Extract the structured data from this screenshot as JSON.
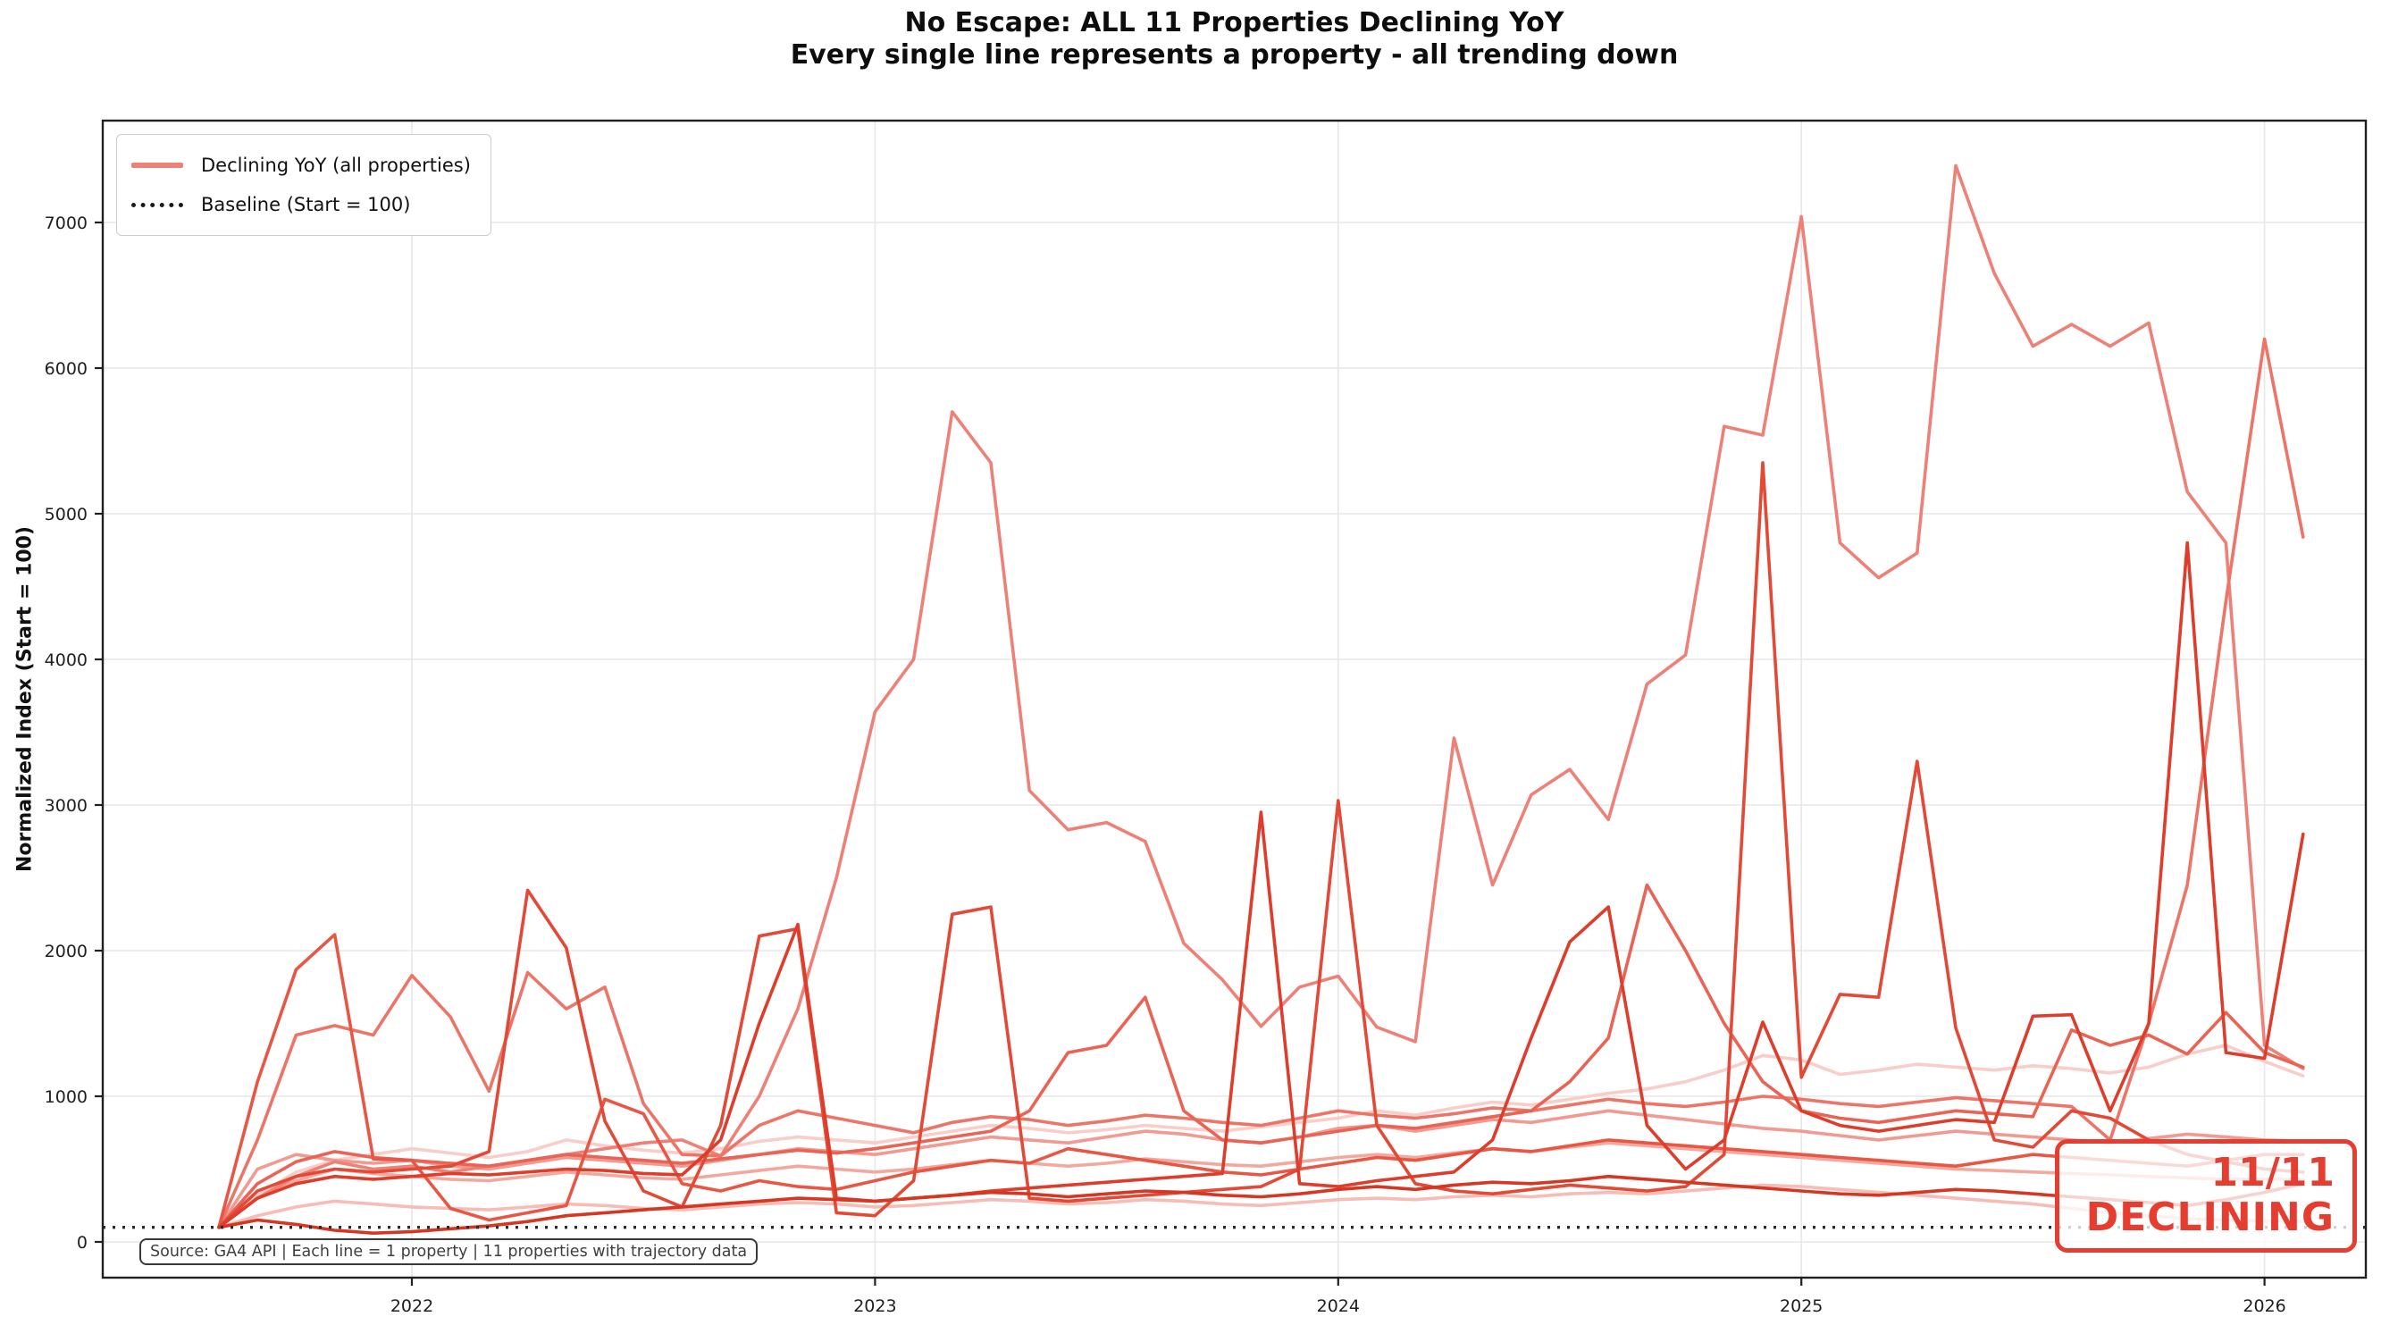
{
  "header": {
    "title": "No Escape: ALL 11 Properties Declining YoY",
    "subtitle": "Every single line represents a property - all trending down"
  },
  "annotation": {
    "line1": "11/11",
    "line2": "DECLINING",
    "color": "#e53e30"
  },
  "source_note": "Source: GA4 API | Each line = 1 property | 11 properties with trajectory data",
  "legend": {
    "declining_label": "Declining YoY (all properties)",
    "declining_color": "#ee8177",
    "baseline_label": "Baseline (Start = 100)"
  },
  "chart_data": {
    "type": "line",
    "title": "No Escape: ALL 11 Properties Declining YoY",
    "subtitle": "Every single line represents a property - all trending down",
    "ylabel": "Normalized Index (Start = 100)",
    "xlabel": "",
    "ylim": [
      -250,
      7750
    ],
    "grid": true,
    "legend_position": "upper left",
    "baseline": {
      "value": 100,
      "label": "Baseline (Start = 100)",
      "style": "dotted",
      "color": "#2b2b2b"
    },
    "yticks": [
      0,
      1000,
      2000,
      3000,
      4000,
      5000,
      6000,
      7000
    ],
    "xticks": [
      {
        "index": 5,
        "label": "2022"
      },
      {
        "index": 17,
        "label": "2023"
      },
      {
        "index": 29,
        "label": "2024"
      },
      {
        "index": 41,
        "label": "2025"
      },
      {
        "index": 53,
        "label": "2026"
      }
    ],
    "x_labels": [
      "2021-08",
      "2021-09",
      "2021-10",
      "2021-11",
      "2021-12",
      "2022-01",
      "2022-02",
      "2022-03",
      "2022-04",
      "2022-05",
      "2022-06",
      "2022-07",
      "2022-08",
      "2022-09",
      "2022-10",
      "2022-11",
      "2022-12",
      "2023-01",
      "2023-02",
      "2023-03",
      "2023-04",
      "2023-05",
      "2023-06",
      "2023-07",
      "2023-08",
      "2023-09",
      "2023-10",
      "2023-11",
      "2023-12",
      "2024-01",
      "2024-02",
      "2024-03",
      "2024-04",
      "2024-05",
      "2024-06",
      "2024-07",
      "2024-08",
      "2024-09",
      "2024-10",
      "2024-11",
      "2024-12",
      "2025-01",
      "2025-02",
      "2025-03",
      "2025-04",
      "2025-05",
      "2025-06",
      "2025-07",
      "2025-08",
      "2025-09",
      "2025-10",
      "2025-11",
      "2025-12",
      "2026-01",
      "2026-02"
    ],
    "series": [
      {
        "id": "property-1",
        "color": "#f9cdc8",
        "values": [
          100,
          320,
          480,
          560,
          600,
          640,
          610,
          580,
          620,
          700,
          660,
          630,
          610,
          640,
          690,
          720,
          700,
          680,
          720,
          760,
          800,
          780,
          750,
          770,
          800,
          780,
          760,
          790,
          820,
          850,
          900,
          870,
          920,
          960,
          940,
          980,
          1020,
          1050,
          1100,
          1180,
          1280,
          1250,
          1150,
          1180,
          1220,
          1200,
          1180,
          1210,
          1190,
          1160,
          1200,
          1290,
          1350,
          1240,
          1140
        ]
      },
      {
        "id": "property-2",
        "color": "#f6bcb5",
        "values": [
          100,
          180,
          240,
          280,
          260,
          240,
          230,
          220,
          240,
          260,
          250,
          230,
          220,
          240,
          260,
          270,
          260,
          240,
          250,
          270,
          290,
          280,
          260,
          270,
          290,
          280,
          260,
          250,
          270,
          290,
          300,
          290,
          310,
          320,
          310,
          330,
          340,
          330,
          350,
          370,
          390,
          380,
          360,
          340,
          320,
          300,
          280,
          260,
          230,
          200,
          180,
          160,
          150,
          145,
          140
        ]
      },
      {
        "id": "property-3",
        "color": "#f3a89f",
        "values": [
          100,
          300,
          420,
          500,
          470,
          450,
          430,
          420,
          450,
          480,
          460,
          440,
          430,
          460,
          490,
          520,
          500,
          480,
          500,
          530,
          560,
          540,
          520,
          540,
          570,
          550,
          530,
          520,
          550,
          580,
          600,
          580,
          610,
          640,
          620,
          650,
          680,
          660,
          640,
          620,
          600,
          580,
          560,
          540,
          520,
          500,
          490,
          480,
          470,
          460,
          450,
          440,
          430,
          430,
          430
        ]
      },
      {
        "id": "property-4",
        "color": "#f09a91",
        "values": [
          100,
          500,
          600,
          560,
          540,
          560,
          520,
          500,
          540,
          580,
          560,
          540,
          520,
          560,
          600,
          640,
          620,
          600,
          640,
          680,
          720,
          700,
          680,
          720,
          760,
          740,
          700,
          680,
          720,
          780,
          800,
          760,
          800,
          840,
          820,
          860,
          900,
          870,
          840,
          810,
          780,
          760,
          730,
          700,
          730,
          760,
          740,
          720,
          700,
          680,
          710,
          740,
          720,
          700,
          690
        ]
      },
      {
        "id": "property-5",
        "color": "#ee8177",
        "values": [
          100,
          300,
          450,
          550,
          500,
          520,
          480,
          520,
          560,
          600,
          640,
          680,
          700,
          590,
          1000,
          1600,
          2500,
          3640,
          4000,
          5700,
          5350,
          3100,
          2830,
          2880,
          2750,
          2050,
          1800,
          1480,
          1750,
          1825,
          1475,
          1375,
          3460,
          2450,
          3070,
          3245,
          2900,
          3830,
          4030,
          5600,
          5540,
          7040,
          4800,
          4560,
          4730,
          7390,
          6650,
          6150,
          6300,
          6150,
          6310,
          5150,
          4800,
          1350,
          1190
        ]
      },
      {
        "id": "property-6",
        "color": "#ec7568",
        "values": [
          100,
          700,
          1420,
          1485,
          1420,
          1830,
          1545,
          1035,
          1850,
          1600,
          1750,
          950,
          600,
          590,
          800,
          900,
          850,
          800,
          750,
          820,
          860,
          840,
          800,
          830,
          870,
          850,
          820,
          800,
          850,
          900,
          870,
          850,
          880,
          920,
          900,
          940,
          980,
          950,
          930,
          960,
          1000,
          980,
          950,
          930,
          960,
          990,
          970,
          950,
          930,
          700,
          1500,
          2450,
          4400,
          6200,
          4840
        ]
      },
      {
        "id": "property-7",
        "color": "#e96455",
        "values": [
          100,
          400,
          550,
          620,
          580,
          560,
          540,
          520,
          560,
          600,
          580,
          560,
          540,
          570,
          600,
          630,
          610,
          640,
          680,
          720,
          760,
          900,
          1300,
          1350,
          1680,
          900,
          700,
          680,
          720,
          760,
          800,
          780,
          820,
          860,
          900,
          1100,
          1400,
          2450,
          2000,
          1500,
          1100,
          900,
          850,
          820,
          860,
          900,
          880,
          860,
          1455,
          1350,
          1420,
          1290,
          1575,
          1300,
          1200
        ]
      },
      {
        "id": "property-8",
        "color": "#e75744",
        "values": [
          100,
          1100,
          1870,
          2110,
          570,
          560,
          230,
          150,
          200,
          250,
          980,
          880,
          400,
          350,
          420,
          380,
          360,
          420,
          480,
          520,
          560,
          540,
          640,
          600,
          560,
          520,
          480,
          460,
          500,
          540,
          580,
          560,
          600,
          640,
          620,
          660,
          700,
          680,
          660,
          640,
          620,
          600,
          580,
          560,
          540,
          520,
          560,
          600,
          580,
          560,
          540,
          520,
          560,
          600,
          600
        ]
      },
      {
        "id": "property-9",
        "color": "#e24936",
        "values": [
          100,
          350,
          450,
          500,
          480,
          500,
          520,
          620,
          2415,
          2020,
          830,
          350,
          240,
          800,
          2100,
          2150,
          200,
          180,
          420,
          2250,
          2300,
          300,
          280,
          300,
          320,
          340,
          360,
          380,
          500,
          3030,
          800,
          400,
          350,
          330,
          360,
          390,
          370,
          350,
          380,
          600,
          5350,
          1130,
          1700,
          1680,
          3300,
          1470,
          700,
          650,
          900,
          850,
          700,
          600,
          550,
          500,
          480
        ]
      },
      {
        "id": "property-10",
        "color": "#dd3d2a",
        "values": [
          100,
          300,
          400,
          450,
          430,
          450,
          470,
          460,
          480,
          500,
          490,
          470,
          460,
          700,
          1500,
          2180,
          300,
          280,
          300,
          320,
          350,
          370,
          390,
          410,
          430,
          450,
          470,
          2950,
          400,
          380,
          420,
          450,
          480,
          700,
          1400,
          2060,
          2300,
          800,
          500,
          700,
          1510,
          900,
          800,
          760,
          800,
          840,
          820,
          1550,
          1560,
          900,
          1500,
          4800,
          1300,
          1260,
          2800
        ]
      },
      {
        "id": "property-11",
        "color": "#d53723",
        "values": [
          100,
          150,
          120,
          80,
          60,
          70,
          90,
          110,
          140,
          180,
          200,
          220,
          240,
          260,
          280,
          300,
          290,
          280,
          300,
          320,
          340,
          330,
          310,
          330,
          350,
          340,
          320,
          310,
          330,
          360,
          380,
          360,
          390,
          410,
          400,
          420,
          450,
          430,
          410,
          390,
          370,
          350,
          330,
          320,
          340,
          360,
          350,
          330,
          310,
          290,
          270,
          250,
          290,
          340,
          400
        ]
      }
    ],
    "style": {
      "grid_color": "#e7e7e7",
      "spine_color": "#202020",
      "tick_label_color": "#1f1f1f",
      "line_width": 3.6
    }
  }
}
